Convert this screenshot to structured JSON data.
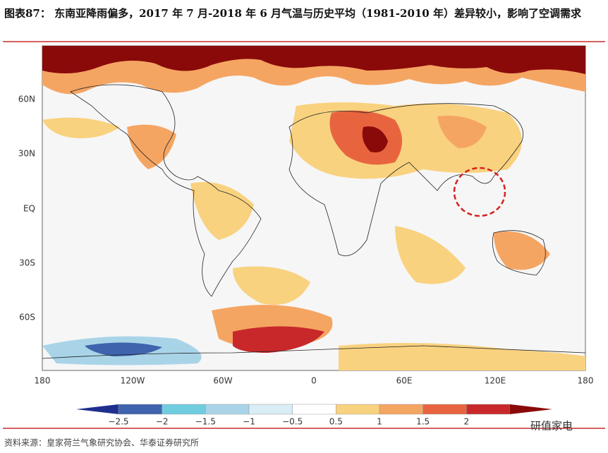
{
  "header": {
    "title": "图表87：  东南亚降雨偏多，2017 年 7 月-2018 年 6 月气温与历史平均（1981-2010 年）差异较小，影响了空调需求"
  },
  "map": {
    "lat_labels": [
      "60N",
      "30N",
      "EQ",
      "30S",
      "60S"
    ],
    "lon_labels": [
      "180",
      "120W",
      "60W",
      "0",
      "60E",
      "120E",
      "180"
    ]
  },
  "colorbar": {
    "colors": [
      "#1f2f8f",
      "#3f63ad",
      "#70cde0",
      "#a9d4e8",
      "#d9edf6",
      "#ffffff",
      "#f9d27f",
      "#f5a562",
      "#e8643f",
      "#c8282a",
      "#8a0a0a"
    ],
    "labels": [
      "−2.5",
      "−2",
      "−1.5",
      "−1",
      "−0.5",
      "0.5",
      "1",
      "1.5",
      "2"
    ]
  },
  "footer": {
    "source": "资料来源：皇家荷兰气象研究协会、华泰证券研究所",
    "watermark": "研值家电"
  }
}
